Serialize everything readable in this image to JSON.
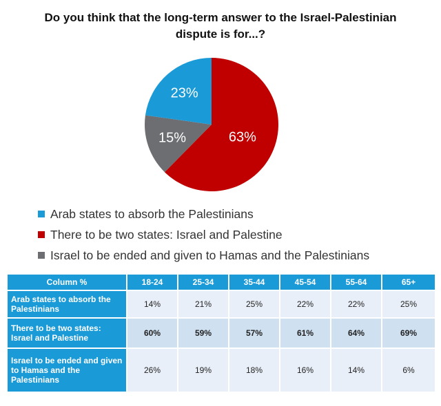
{
  "chart_data": {
    "type": "pie",
    "title": "Do you think that the long-term answer to the Israel-Palestinian dispute is for...?",
    "slices": [
      {
        "name": "There to be two states: Israel and Palestine",
        "value": 63,
        "label": "63%",
        "color": "#c00000"
      },
      {
        "name": "Israel to be ended and given to Hamas and the Palestinians",
        "value": 15,
        "label": "15%",
        "color": "#6d6e71"
      },
      {
        "name": "Arab states to absorb the Palestinians",
        "value": 23,
        "label": "23%",
        "color": "#1a9ad7"
      }
    ],
    "legend": {
      "position": "bottom-left",
      "items": [
        {
          "label": "Arab states to absorb the Palestinians",
          "color": "#1a9ad7"
        },
        {
          "label": "There to be two states: Israel and Palestine",
          "color": "#c00000"
        },
        {
          "label": "Israel to be ended and given to Hamas and the Palestinians",
          "color": "#6d6e71"
        }
      ]
    }
  },
  "table": {
    "corner": "Column %",
    "columns": [
      "18-24",
      "25-34",
      "35-44",
      "45-54",
      "55-64",
      "65+"
    ],
    "rows": [
      {
        "label": "Arab states to absorb the Palestinians",
        "values": [
          "14%",
          "21%",
          "25%",
          "22%",
          "22%",
          "25%"
        ]
      },
      {
        "label": "There to be two states: Israel and Palestine",
        "values": [
          "60%",
          "59%",
          "57%",
          "61%",
          "64%",
          "69%"
        ]
      },
      {
        "label": "Israel to be ended and given to Hamas and the Palestinians",
        "values": [
          "26%",
          "19%",
          "18%",
          "16%",
          "14%",
          "6%"
        ]
      }
    ]
  }
}
